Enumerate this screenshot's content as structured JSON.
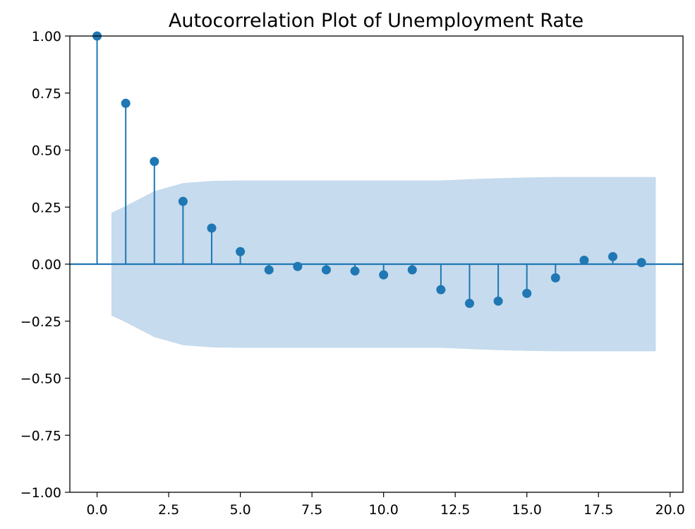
{
  "chart_data": {
    "type": "stem",
    "title": "Autocorrelation Plot of Unemployment Rate",
    "xlabel": "",
    "ylabel": "",
    "xlim": [
      -0.95,
      20.45
    ],
    "ylim": [
      -1.0,
      1.0
    ],
    "x_ticks": [
      0.0,
      2.5,
      5.0,
      7.5,
      10.0,
      12.5,
      15.0,
      17.5,
      20.0
    ],
    "x_tick_labels": [
      "0.0",
      "2.5",
      "5.0",
      "7.5",
      "10.0",
      "12.5",
      "15.0",
      "17.5",
      "20.0"
    ],
    "y_ticks": [
      -1.0,
      -0.75,
      -0.5,
      -0.25,
      0.0,
      0.25,
      0.5,
      0.75,
      1.0
    ],
    "y_tick_labels": [
      "−1.00",
      "−0.75",
      "−0.50",
      "−0.25",
      "0.00",
      "0.25",
      "0.50",
      "0.75",
      "1.00"
    ],
    "grid": false,
    "series": [
      {
        "lags": [
          0,
          1,
          2,
          3,
          4,
          5,
          6,
          7,
          8,
          9,
          10,
          11,
          12,
          13,
          14,
          15,
          16,
          17,
          18,
          19
        ],
        "values": [
          1.0,
          0.705,
          0.45,
          0.275,
          0.158,
          0.055,
          -0.025,
          -0.01,
          -0.025,
          -0.03,
          -0.047,
          -0.025,
          -0.112,
          -0.172,
          -0.162,
          -0.128,
          -0.06,
          0.017,
          0.033,
          0.007
        ]
      }
    ],
    "confidence_band": {
      "x": [
        0.5,
        1,
        2,
        3,
        4,
        5,
        6,
        7,
        8,
        9,
        10,
        11,
        12,
        13,
        14,
        15,
        16,
        17,
        18,
        19,
        19.5
      ],
      "upper": [
        0.225,
        0.255,
        0.32,
        0.355,
        0.365,
        0.367,
        0.367,
        0.367,
        0.367,
        0.367,
        0.367,
        0.367,
        0.367,
        0.372,
        0.377,
        0.38,
        0.382,
        0.382,
        0.382,
        0.382,
        0.382
      ]
    },
    "colors": {
      "stem": "#1f77b4",
      "band": "#c6dbed",
      "zero_line": "#1f77b4"
    }
  }
}
